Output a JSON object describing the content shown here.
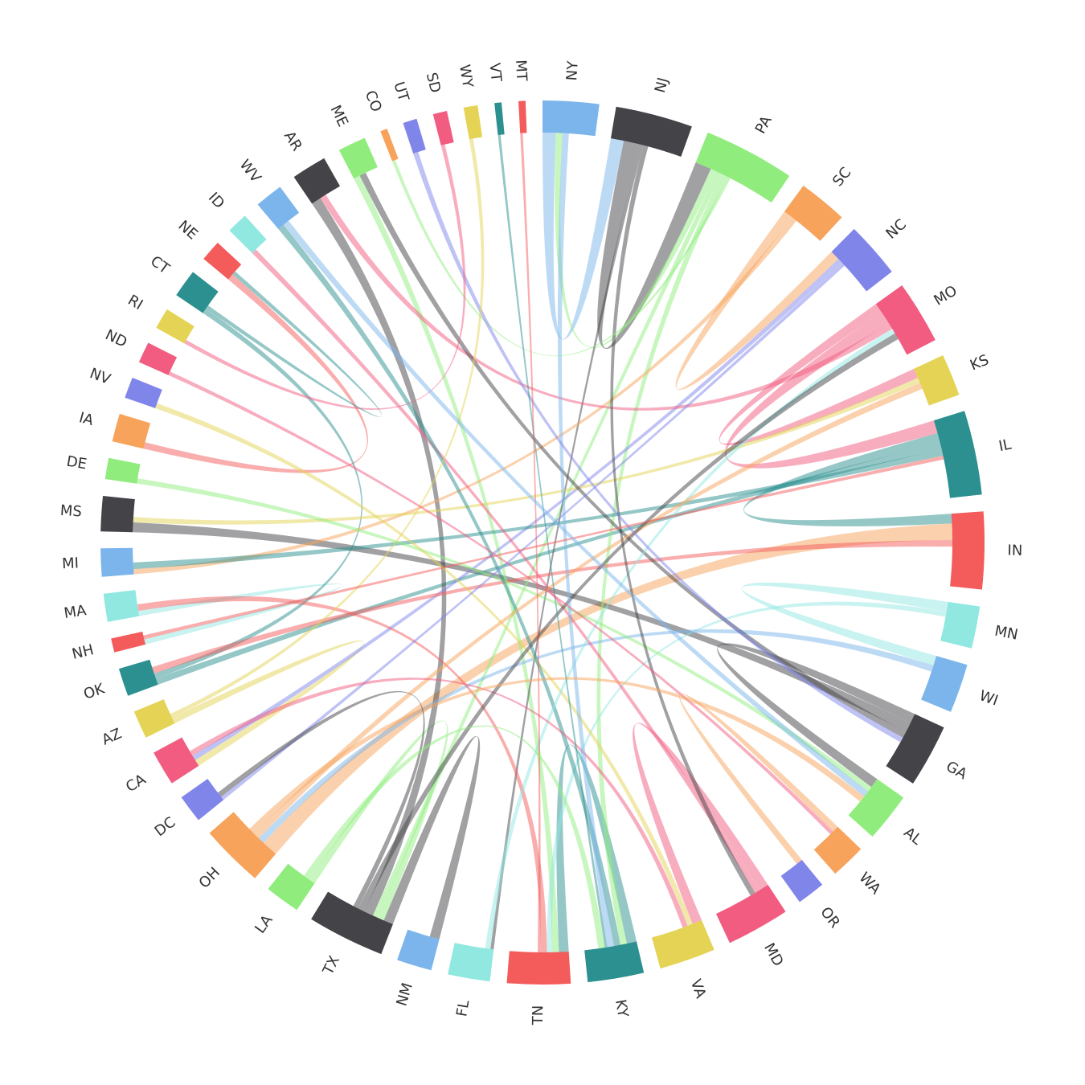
{
  "chart_data": {
    "type": "chord",
    "categories": [
      "NY",
      "NJ",
      "PA",
      "SC",
      "NC",
      "MO",
      "KS",
      "IL",
      "IN",
      "MN",
      "WI",
      "GA",
      "AL",
      "WA",
      "OR",
      "MD",
      "VA",
      "KY",
      "TN",
      "FL",
      "NM",
      "TX",
      "LA",
      "OH",
      "DC",
      "CA",
      "AZ",
      "OK",
      "NH",
      "MA",
      "MI",
      "MS",
      "DE",
      "IA",
      "NV",
      "ND",
      "RI",
      "CT",
      "NE",
      "ID",
      "WV",
      "AR",
      "ME",
      "CO",
      "UT",
      "SD",
      "WY",
      "VT",
      "MT"
    ],
    "values": [
      8,
      11,
      13,
      7,
      8,
      9,
      6,
      12,
      11,
      6,
      7,
      9,
      7,
      5,
      4,
      9,
      8,
      8,
      9,
      6,
      5,
      11,
      5,
      9,
      4,
      5,
      4,
      4,
      2,
      4,
      4,
      5,
      3,
      4,
      3,
      3,
      3,
      4,
      3,
      3,
      4,
      5,
      4,
      1,
      2,
      2,
      2,
      1,
      1
    ],
    "colors": [
      "#7cb5ec",
      "#434348",
      "#90ed7d",
      "#f7a35c",
      "#8085e9",
      "#f15c80",
      "#e4d354",
      "#2b908f",
      "#f45b5b",
      "#91e8e1"
    ],
    "links": [
      {
        "source": "NY",
        "target": "NJ",
        "value": 2
      },
      {
        "source": "NJ",
        "target": "PA",
        "value": 2.5
      },
      {
        "source": "PA",
        "target": "NY",
        "value": 1
      },
      {
        "source": "SC",
        "target": "NC",
        "value": 1.5
      },
      {
        "source": "MO",
        "target": "KS",
        "value": 1.5
      },
      {
        "source": "MO",
        "target": "IL",
        "value": 2
      },
      {
        "source": "IL",
        "target": "IN",
        "value": 1.5
      },
      {
        "source": "MN",
        "target": "WI",
        "value": 1.5
      },
      {
        "source": "GA",
        "target": "AL",
        "value": 1.5
      },
      {
        "source": "WA",
        "target": "OR",
        "value": 1
      },
      {
        "source": "MD",
        "target": "VA",
        "value": 1.5
      },
      {
        "source": "KY",
        "target": "TN",
        "value": 1.5
      },
      {
        "source": "TX",
        "target": "NM",
        "value": 1.5
      },
      {
        "source": "LA",
        "target": "TX",
        "value": 1
      },
      {
        "source": "AZ",
        "target": "CA",
        "value": 1
      },
      {
        "source": "MA",
        "target": "NH",
        "value": 0.8
      },
      {
        "source": "OH",
        "target": "IN",
        "value": 2.5
      },
      {
        "source": "MS",
        "target": "GA",
        "value": 1.5
      },
      {
        "source": "PA",
        "target": "TX",
        "value": 0.8
      },
      {
        "source": "IL",
        "target": "OK",
        "value": 1
      },
      {
        "source": "AR",
        "target": "TX",
        "value": 1.5
      },
      {
        "source": "ME",
        "target": "TN",
        "value": 1
      },
      {
        "source": "NE",
        "target": "IA",
        "value": 1
      },
      {
        "source": "CT",
        "target": "OK",
        "value": 0.8
      },
      {
        "source": "NJ",
        "target": "FL",
        "value": 0.5
      },
      {
        "source": "PA",
        "target": "KY",
        "value": 1
      },
      {
        "source": "SC",
        "target": "MI",
        "value": 0.8
      },
      {
        "source": "NC",
        "target": "CA",
        "value": 0.8
      },
      {
        "source": "MO",
        "target": "AR",
        "value": 1
      },
      {
        "source": "KS",
        "target": "MS",
        "value": 0.8
      },
      {
        "source": "IL",
        "target": "MI",
        "value": 1
      },
      {
        "source": "IN",
        "target": "OK",
        "value": 1
      },
      {
        "source": "MN",
        "target": "TN",
        "value": 0.8
      },
      {
        "source": "WI",
        "target": "OH",
        "value": 1
      },
      {
        "source": "GA",
        "target": "ME",
        "value": 1
      },
      {
        "source": "AL",
        "target": "DE",
        "value": 0.8
      },
      {
        "source": "MD",
        "target": "ID",
        "value": 0.8
      },
      {
        "source": "VA",
        "target": "NV",
        "value": 0.8
      },
      {
        "source": "KY",
        "target": "WV",
        "value": 1
      },
      {
        "source": "TN",
        "target": "MA",
        "value": 1
      },
      {
        "source": "FL",
        "target": "MO",
        "value": 0.8
      },
      {
        "source": "OH",
        "target": "KS",
        "value": 1
      },
      {
        "source": "DC",
        "target": "NC",
        "value": 0.6
      },
      {
        "source": "CA",
        "target": "VA",
        "value": 0.8
      },
      {
        "source": "TX",
        "target": "MO",
        "value": 1
      },
      {
        "source": "NY",
        "target": "KY",
        "value": 1
      },
      {
        "source": "NJ",
        "target": "MD",
        "value": 0.8
      },
      {
        "source": "PA",
        "target": "CO",
        "value": 0.5
      },
      {
        "source": "UT",
        "target": "GA",
        "value": 0.8
      },
      {
        "source": "SD",
        "target": "RI",
        "value": 0.6
      },
      {
        "source": "WY",
        "target": "AZ",
        "value": 0.6
      },
      {
        "source": "VT",
        "target": "KY",
        "value": 0.4
      },
      {
        "source": "MT",
        "target": "TN",
        "value": 0.4
      },
      {
        "source": "NH",
        "target": "IL",
        "value": 0.6
      },
      {
        "source": "ND",
        "target": "WA",
        "value": 0.6
      },
      {
        "source": "CT",
        "target": "NE",
        "value": 0.6
      },
      {
        "source": "WV",
        "target": "AL",
        "value": 1
      },
      {
        "source": "OH",
        "target": "AL",
        "value": 1
      },
      {
        "source": "TX",
        "target": "DC",
        "value": 0.8
      },
      {
        "source": "LA",
        "target": "KY",
        "value": 1
      }
    ]
  }
}
